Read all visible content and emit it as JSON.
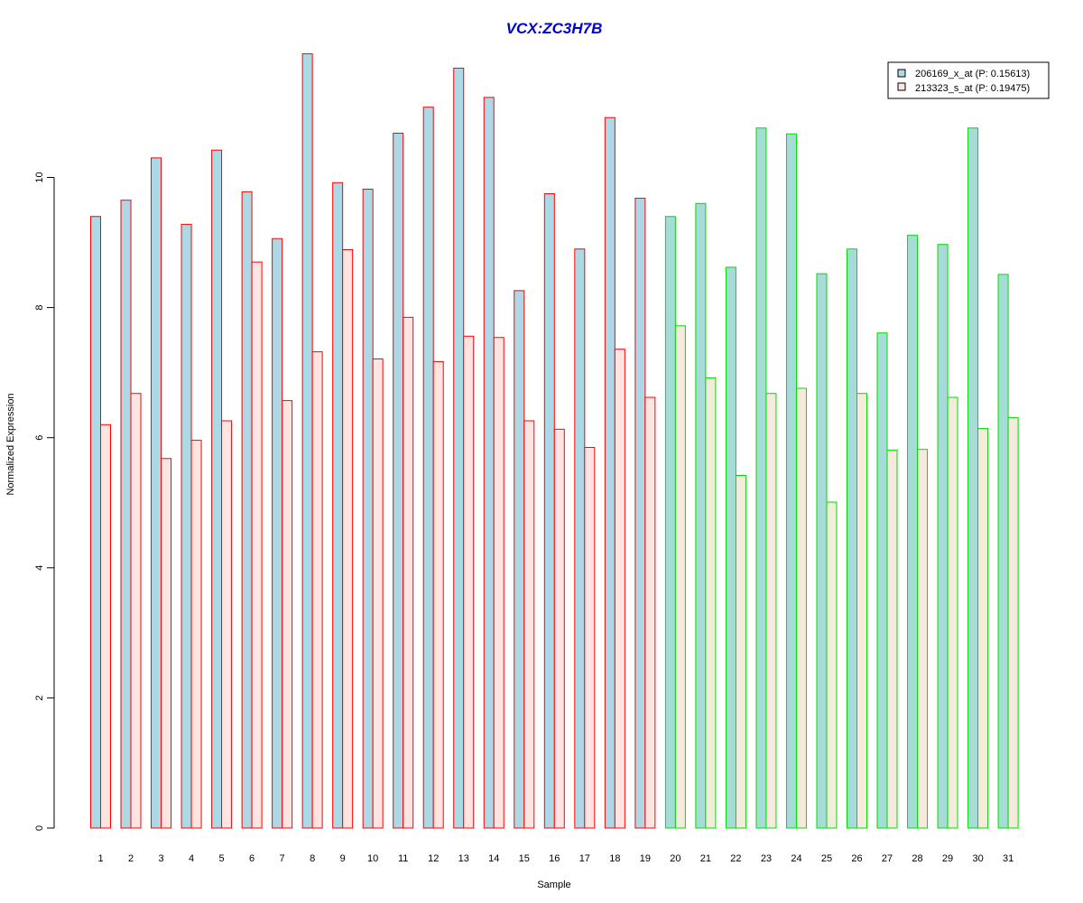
{
  "chart_data": {
    "type": "bar",
    "title": "VCX:ZC3H7B",
    "xlabel": "Sample",
    "ylabel": "Normalized Expression",
    "ylim": [
      0,
      12
    ],
    "yticks": [
      "0",
      "2",
      "4",
      "6",
      "8",
      "10"
    ],
    "grid": false,
    "legend_position": "top-right",
    "categories": [
      "1",
      "2",
      "3",
      "4",
      "5",
      "6",
      "7",
      "8",
      "9",
      "10",
      "11",
      "12",
      "13",
      "14",
      "15",
      "16",
      "17",
      "18",
      "19",
      "20",
      "21",
      "22",
      "23",
      "24",
      "25",
      "26",
      "27",
      "28",
      "29",
      "30",
      "31"
    ],
    "series": [
      {
        "name": "206169_x_at (P: 0.15613)",
        "fill": "#add8e6",
        "values": [
          9.4,
          9.65,
          10.3,
          9.28,
          10.42,
          9.78,
          9.06,
          11.9,
          9.92,
          9.82,
          10.68,
          11.08,
          11.68,
          11.23,
          8.26,
          9.75,
          8.9,
          10.92,
          9.68,
          9.4,
          9.6,
          8.62,
          10.76,
          10.67,
          8.52,
          8.9,
          7.61,
          9.11,
          8.97,
          10.76,
          8.51
        ]
      },
      {
        "name": "213323_s_at (P: 0.19475)",
        "fill": "#ffe4e1",
        "values": [
          6.2,
          6.68,
          5.68,
          5.96,
          6.26,
          8.7,
          6.57,
          7.32,
          8.89,
          7.21,
          7.85,
          7.17,
          7.56,
          7.54,
          6.26,
          6.13,
          5.85,
          7.36,
          6.62,
          7.72,
          6.92,
          5.42,
          6.68,
          6.76,
          5.01,
          6.68,
          5.81,
          5.82,
          6.62,
          6.14,
          6.31
        ]
      }
    ],
    "group_colors": {
      "group1": "#ff0000",
      "group2": "#00dd00",
      "group2_second_fill": "#f5ebdc",
      "title_color": "#0000cd"
    },
    "group_split_index": 19
  }
}
